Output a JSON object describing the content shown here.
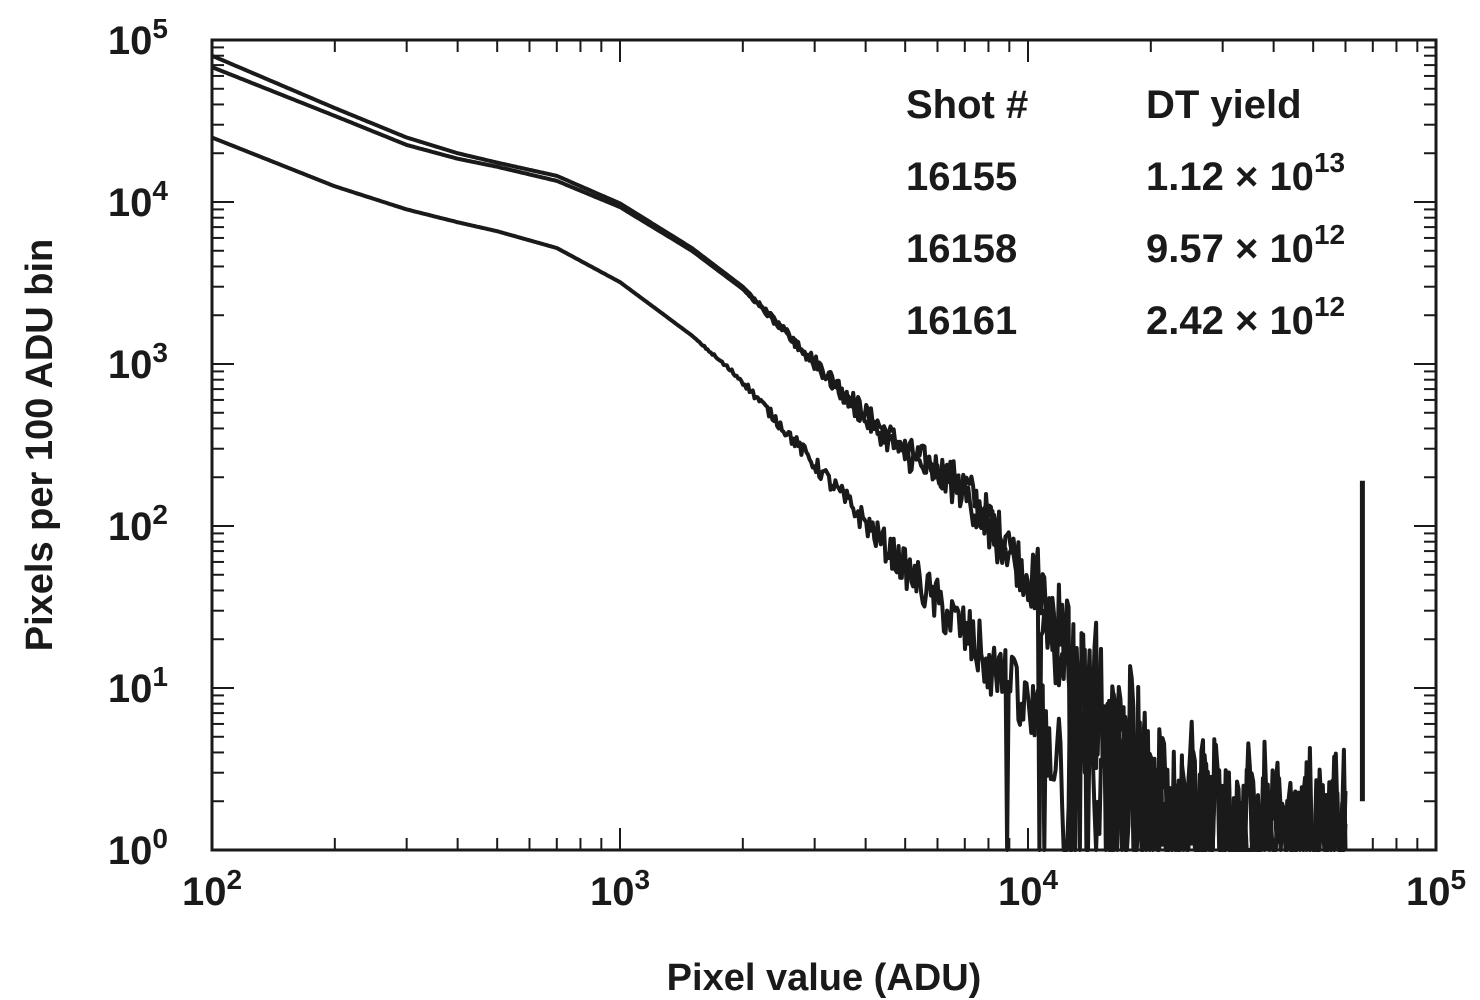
{
  "chart_data": {
    "type": "line",
    "title": "",
    "xlabel": "Pixel value (ADU)",
    "ylabel": "Pixels per 100 ADU bin",
    "xscale": "log",
    "yscale": "log",
    "xlim": [
      100,
      100000
    ],
    "ylim": [
      1,
      100000
    ],
    "grid": false,
    "line_color": "#1a1a1a",
    "x_ticks": [
      {
        "base": "10",
        "exp": "2"
      },
      {
        "base": "10",
        "exp": "3"
      },
      {
        "base": "10",
        "exp": "4"
      },
      {
        "base": "10",
        "exp": "5"
      }
    ],
    "y_ticks": [
      {
        "base": "10",
        "exp": "0"
      },
      {
        "base": "10",
        "exp": "1"
      },
      {
        "base": "10",
        "exp": "2"
      },
      {
        "base": "10",
        "exp": "3"
      },
      {
        "base": "10",
        "exp": "4"
      },
      {
        "base": "10",
        "exp": "5"
      }
    ],
    "legend": {
      "placement": "top-right",
      "header": {
        "shot": "Shot #",
        "yield": "DT yield"
      },
      "rows": [
        {
          "shot": "16155",
          "mantissa": "1.12",
          "times": "×",
          "base": "10",
          "exp": "13"
        },
        {
          "shot": "16158",
          "mantissa": "9.57",
          "times": "×",
          "base": "10",
          "exp": "12"
        },
        {
          "shot": "16161",
          "mantissa": "2.42",
          "times": "×",
          "base": "10",
          "exp": "12"
        }
      ]
    },
    "series": [
      {
        "x": [
          100,
          200,
          300,
          400,
          500,
          700,
          1000,
          1500,
          2000,
          3000,
          4000,
          5000,
          7000,
          10000,
          13000,
          16000,
          20000,
          30000,
          45000,
          60000
        ],
        "y": [
          80000,
          38000,
          25000,
          20000,
          17500,
          14500,
          9800,
          5200,
          3000,
          1050,
          500,
          300,
          180,
          50,
          14,
          5,
          2.5,
          1.6,
          1.5,
          1.4
        ],
        "noise": [
          0,
          0,
          0,
          0,
          0,
          0,
          0,
          0,
          0,
          0.04,
          0.06,
          0.08,
          0.12,
          0.18,
          0.3,
          0.4,
          0.4,
          0.35,
          0.3,
          0.3
        ]
      },
      {
        "x": [
          100,
          200,
          300,
          400,
          500,
          700,
          1000,
          1500,
          2000,
          3000,
          4000,
          5000,
          7000,
          10000,
          13000,
          16000,
          20000,
          30000,
          45000,
          60000
        ],
        "y": [
          68000,
          34000,
          22500,
          18500,
          16500,
          13500,
          9300,
          5000,
          2900,
          1000,
          450,
          270,
          160,
          42,
          11,
          4,
          2.2,
          1.5,
          1.4,
          1.4
        ],
        "noise": [
          0,
          0,
          0,
          0,
          0,
          0,
          0,
          0,
          0,
          0.04,
          0.06,
          0.08,
          0.12,
          0.18,
          0.3,
          0.4,
          0.4,
          0.35,
          0.3,
          0.3
        ]
      },
      {
        "x": [
          100,
          200,
          300,
          400,
          500,
          700,
          1000,
          1500,
          2000,
          3000,
          4000,
          5000,
          7000,
          10000,
          12000,
          14000,
          17000,
          25000,
          40000,
          60000
        ],
        "y": [
          25000,
          12500,
          9000,
          7500,
          6600,
          5200,
          3200,
          1500,
          780,
          240,
          105,
          55,
          22,
          7,
          4,
          3,
          2,
          1.6,
          1.5,
          1.5
        ],
        "noise": [
          0,
          0,
          0,
          0,
          0,
          0,
          0,
          0,
          0.02,
          0.05,
          0.08,
          0.12,
          0.18,
          0.25,
          0.35,
          0.4,
          0.4,
          0.35,
          0.3,
          0.3
        ]
      },
      {
        "x": [
          66000,
          66000
        ],
        "y": [
          2,
          190
        ]
      }
    ]
  }
}
